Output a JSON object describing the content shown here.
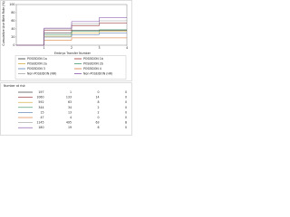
{
  "chart_data": {
    "type": "step",
    "ylabel": "Cumulative Live Birth Rate (%)",
    "xlabel": "Embryo Transfer Number",
    "x": [
      0,
      1,
      2,
      3,
      4
    ],
    "xlim": [
      0,
      4
    ],
    "xticks": [
      1,
      2,
      3,
      4
    ],
    "ylim": [
      0,
      100
    ],
    "yticks": [
      0,
      20,
      40,
      60,
      80,
      100
    ],
    "series": [
      {
        "name": "POSEIDON 1a",
        "color": "#1a1a1a",
        "values": [
          0,
          30,
          36,
          36,
          36
        ]
      },
      {
        "name": "POSEIDON 1b",
        "color": "#8b1a1a",
        "values": [
          0,
          36,
          48,
          55,
          55
        ]
      },
      {
        "name": "POSEIDON 2a",
        "color": "#c9a227",
        "values": [
          0,
          22,
          30,
          34,
          34
        ]
      },
      {
        "name": "POSEIDON 2b",
        "color": "#2e8b57",
        "values": [
          0,
          25,
          34,
          38,
          38
        ]
      },
      {
        "name": "POSEIDON 3",
        "color": "#4a6fa5",
        "values": [
          0,
          20,
          26,
          30,
          30
        ]
      },
      {
        "name": "POSEIDON 4",
        "color": "#d2691e",
        "values": [
          0,
          12,
          18,
          18,
          18
        ]
      },
      {
        "name": "Non-POSEIDON (NR)",
        "color": "#9a9a9a",
        "values": [
          0,
          40,
          52,
          60,
          62
        ]
      },
      {
        "name": "Non-POSEIDON (HR)",
        "color": "#7b3f9e",
        "values": [
          0,
          42,
          58,
          68,
          68
        ]
      }
    ],
    "risk_table": {
      "title": "Number at risk",
      "rows": [
        [
          "197",
          "1",
          "0",
          "0"
        ],
        [
          "1060",
          "133",
          "14",
          "0"
        ],
        [
          "592",
          "63",
          "8",
          "0"
        ],
        [
          "344",
          "34",
          "2",
          "0"
        ],
        [
          "15",
          "13",
          "2",
          "0"
        ],
        [
          "47",
          "4",
          "0",
          "0"
        ],
        [
          "1145",
          "495",
          "63",
          "8"
        ],
        [
          "180",
          "19",
          "6",
          "0"
        ]
      ]
    }
  }
}
